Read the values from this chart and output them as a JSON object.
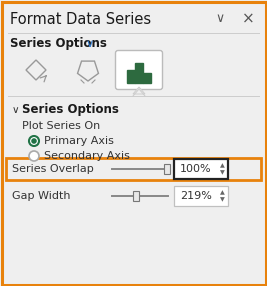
{
  "title": "Format Data Series",
  "bg_color": "#efefef",
  "title_color": "#1a1a1a",
  "title_fontsize": 10.5,
  "chevron_color": "#2b7ad4",
  "section_label": "Series Options",
  "subsection_label": "Series Options",
  "plot_series_on": "Plot Series On",
  "primary_axis": "Primary Axis",
  "secondary_axis": "Secondary Axis",
  "series_overlap_label": "Series Overlap",
  "series_overlap_value": "100%",
  "gap_width_label": "Gap Width",
  "gap_width_value": "219%",
  "orange_highlight": "#e8820c",
  "green_icon_color": "#2d6a3f",
  "radio_green": "#217346",
  "slider_line_color": "#888888",
  "border_color": "#c0c0c0",
  "dark_border": "#222222",
  "text_color": "#333333",
  "separator_color": "#cccccc",
  "white": "#ffffff"
}
